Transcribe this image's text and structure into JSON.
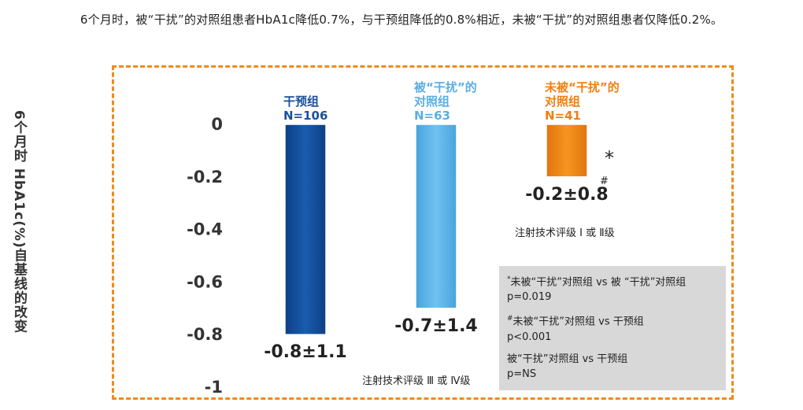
{
  "headline": "6个月时，被“干扰”的对照组患者HbA1c降低0.7%，与干预组降低的0.8%相近，未被“干扰”的对照组患者仅降低0.2%。",
  "chart_data": {
    "type": "bar",
    "ylabel": "6个月时 HbA1c(%)自基线的改变",
    "ylim": [
      -1,
      0
    ],
    "yticks": [
      0,
      -0.2,
      -0.4,
      -0.6,
      -0.8,
      -1
    ],
    "ytick_labels": [
      "0",
      "-0.2",
      "-0.4",
      "-0.6",
      "-0.8",
      "-1"
    ],
    "grid": false,
    "bars": [
      {
        "label_lines": [
          "干预组",
          "N=106"
        ],
        "value": -0.8,
        "value_label": "-0.8±1.1",
        "color": "#114e9a",
        "label_color": "#1b4f9c"
      },
      {
        "label_lines": [
          "被“干扰”的",
          "对照组",
          "N=63"
        ],
        "value": -0.7,
        "value_label": "-0.7±1.4",
        "color": "#5ab3e8",
        "label_color": "#5aaee3"
      },
      {
        "label_lines": [
          "未被“干扰”的",
          "对照组",
          "N=41"
        ],
        "value": -0.2,
        "value_label": "-0.2±0.8",
        "color": "#f08516",
        "label_color": "#f07f0f"
      }
    ],
    "annotations": {
      "marker_star": "*",
      "marker_hash": "#",
      "technique_low": "注射技术评级 Ⅰ 或 Ⅱ级",
      "technique_high": "注射技术评级 Ⅲ 或 Ⅳ级"
    },
    "legend": [
      {
        "marker": "*",
        "comparison": "未被“干扰”对照组 vs 被 “干扰”对照组",
        "p": "p=0.019"
      },
      {
        "marker": "#",
        "comparison": "未被“干扰”对照组 vs 干预组",
        "p": "p<0.001"
      },
      {
        "marker": "",
        "comparison": "被“干扰”对照组 vs 干预组",
        "p": "p=NS"
      }
    ]
  }
}
